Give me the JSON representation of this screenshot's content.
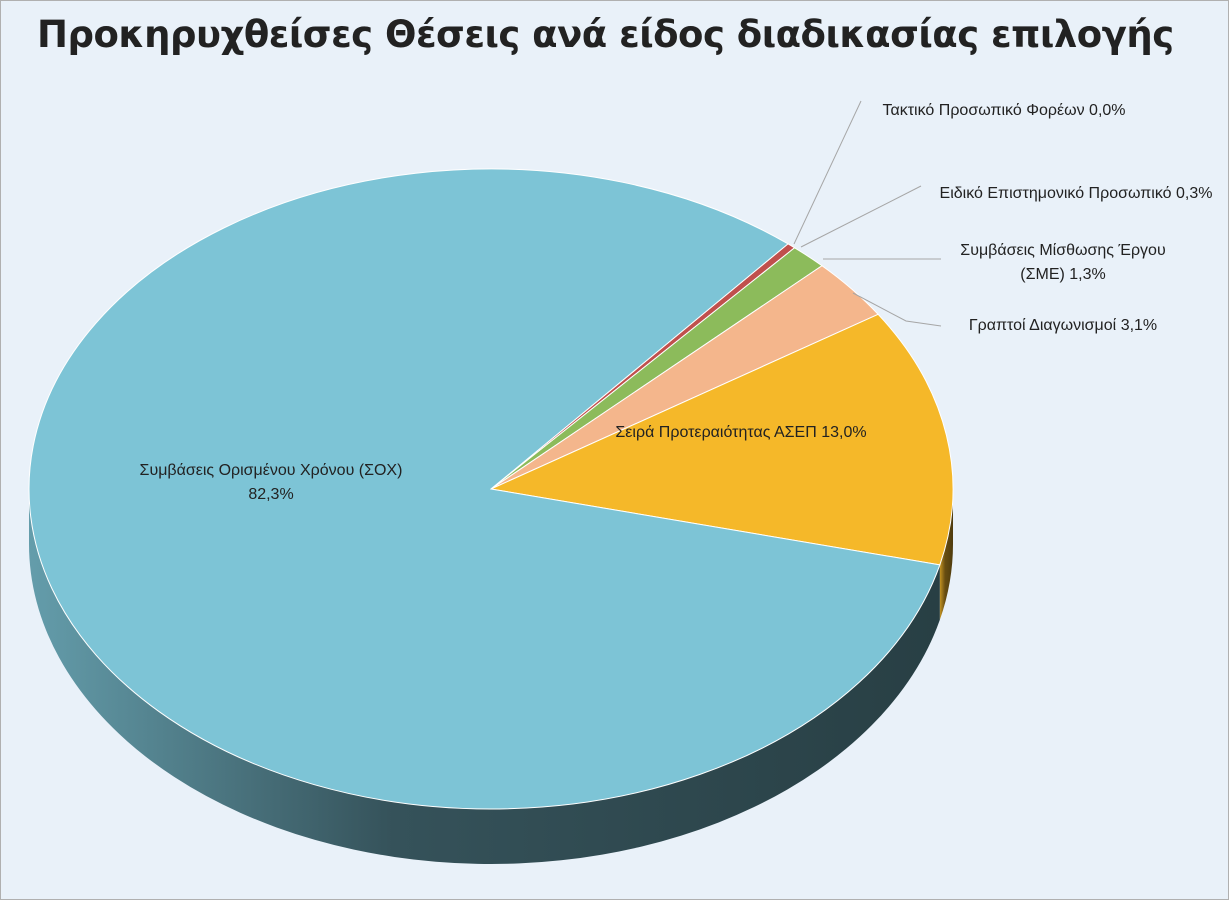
{
  "chart_data": {
    "type": "pie",
    "title": "Προκηρυχθείσες Θέσεις ανά είδος διαδικασίας επιλογής",
    "categories": [
      "Τακτικό Προσωπικό Φορέων",
      "Ειδικό Επιστημονικό Προσωπικό",
      "Συμβάσεις Μίσθωσης Έργου (ΣΜΕ)",
      "Γραπτοί Διαγωνισμοί",
      "Σειρά Προτεραιότητας ΑΣΕΠ",
      "Συμβάσεις Ορισμένου Χρόνου (ΣΟΧ)"
    ],
    "values": [
      0.0,
      0.3,
      1.3,
      3.1,
      13.0,
      82.3
    ],
    "value_labels": [
      "0,0%",
      "0,3%",
      "1,3%",
      "3,1%",
      "13,0%",
      "82,3%"
    ],
    "colors": [
      "#8064a2",
      "#c0504d",
      "#8cbb5b",
      "#f4b68c",
      "#f5b829",
      "#7dc4d6"
    ]
  }
}
